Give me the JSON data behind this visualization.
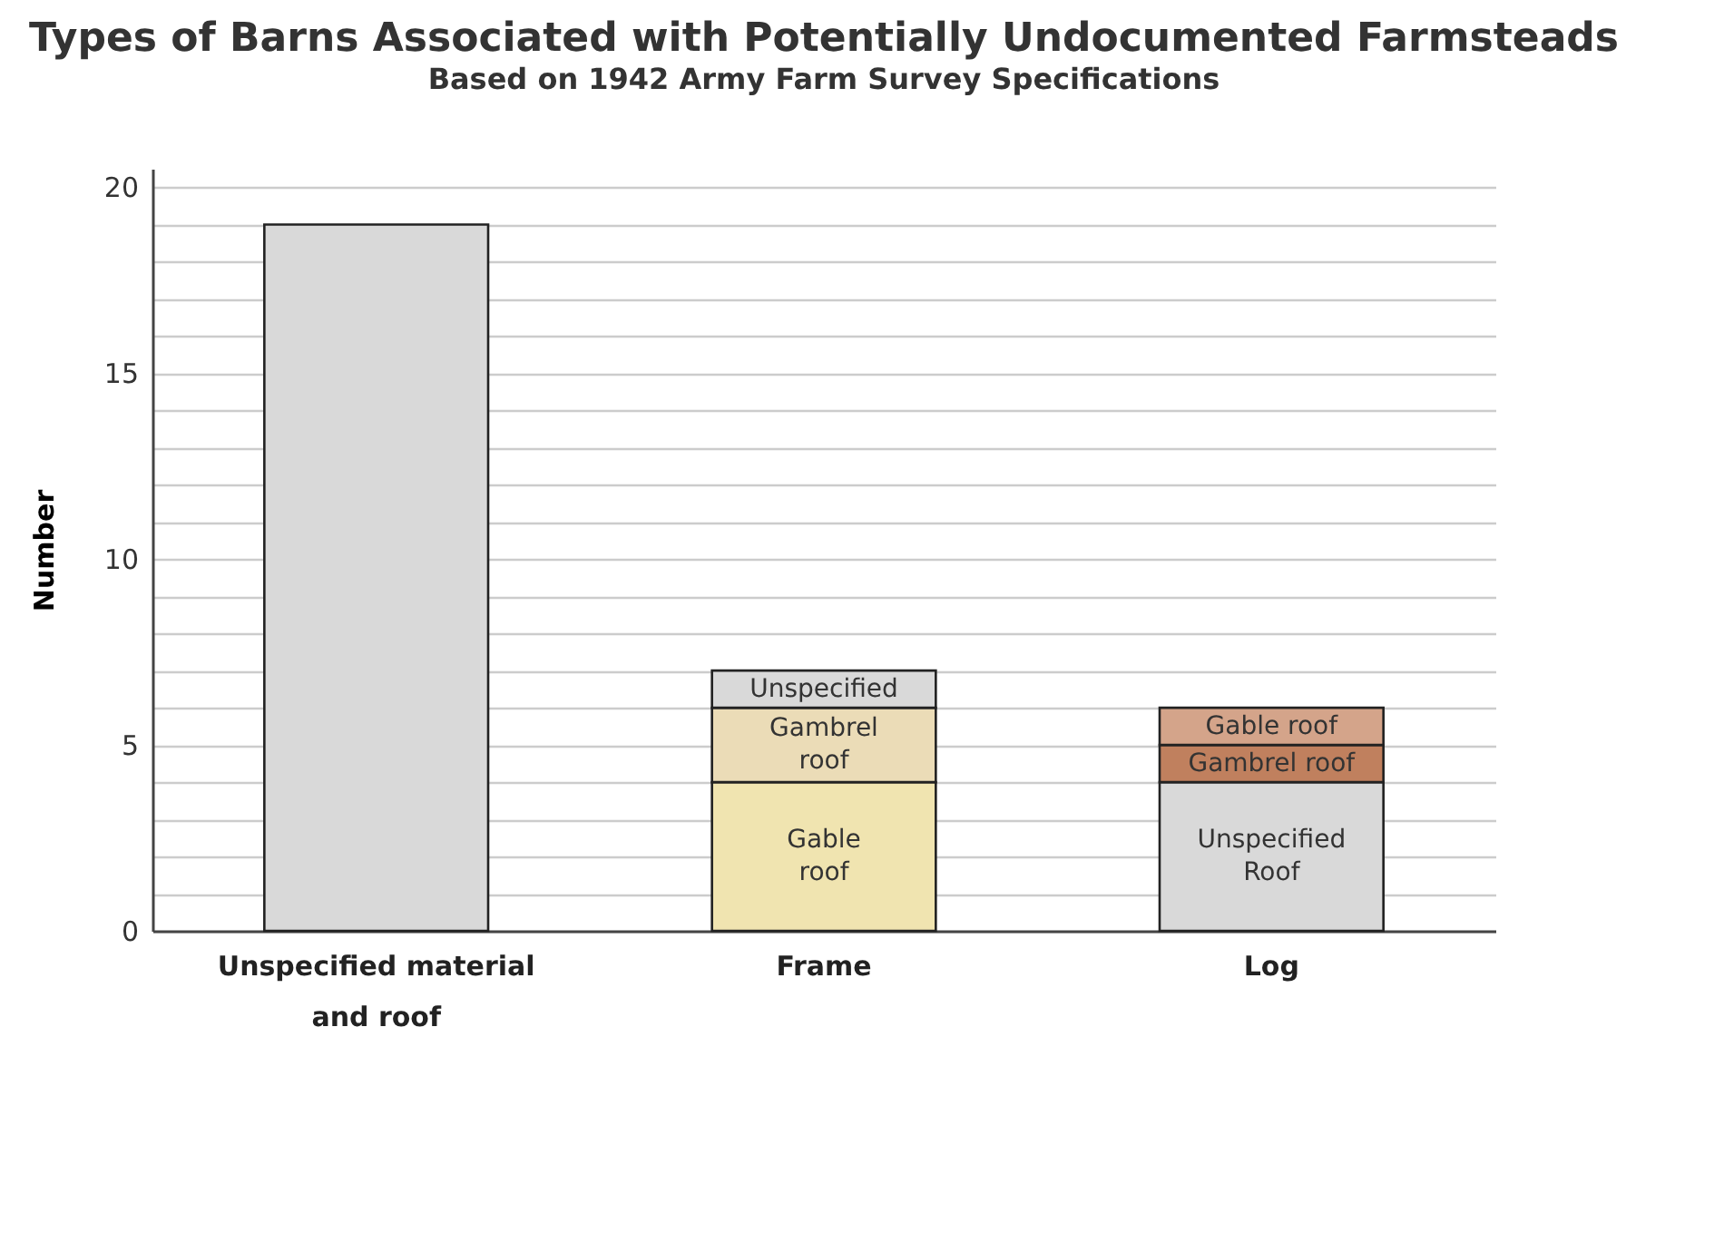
{
  "chart_data": {
    "type": "bar",
    "title": "Types of Barns Associated with Potentially Undocumented Farmsteads",
    "subtitle": "Based on 1942 Army Farm Survey Specifications",
    "ylabel": "Number",
    "categories": [
      "Unspecified material and roof",
      "Frame",
      "Log"
    ],
    "stacked": true,
    "grid": "y",
    "legend": false,
    "ylim": [
      0,
      20.5
    ],
    "yticks": [
      0,
      {
        "value": 1,
        "label": null
      },
      {
        "value": 2,
        "label": null
      },
      {
        "value": 3,
        "label": null
      },
      {
        "value": 4,
        "label": null
      },
      5,
      {
        "value": 6,
        "label": null
      },
      {
        "value": 7,
        "label": null
      },
      {
        "value": 8,
        "label": null
      },
      {
        "value": 9,
        "label": null
      },
      10,
      {
        "value": 11,
        "label": null
      },
      {
        "value": 12,
        "label": null
      },
      {
        "value": 13,
        "label": null
      },
      {
        "value": 14,
        "label": null
      },
      15,
      {
        "value": 16,
        "label": null
      },
      {
        "value": 17,
        "label": null
      },
      {
        "value": 18,
        "label": null
      },
      {
        "value": 19,
        "label": null
      },
      20
    ],
    "series": [
      {
        "color": "#d9d9d9",
        "values": [
          19,
          null,
          null
        ]
      },
      {
        "name": "Gable\nroof",
        "color": "#f0e4b0",
        "values": [
          null,
          4,
          null
        ]
      },
      {
        "name": "Gambrel\nroof",
        "color": "#ebdcb7",
        "values": [
          null,
          2,
          null
        ]
      },
      {
        "name": "Unspecified",
        "color": "#d9d9d9",
        "values": [
          null,
          1,
          null
        ]
      },
      {
        "name": "Unspecified\nRoof",
        "color": "#d9d9d9",
        "values": [
          null,
          null,
          4
        ]
      },
      {
        "name": "Gambrel roof",
        "color": "#c0805e",
        "values": [
          null,
          null,
          1
        ]
      },
      {
        "name": "Gable roof",
        "color": "#d4a48a",
        "values": [
          null,
          null,
          1
        ]
      }
    ]
  }
}
